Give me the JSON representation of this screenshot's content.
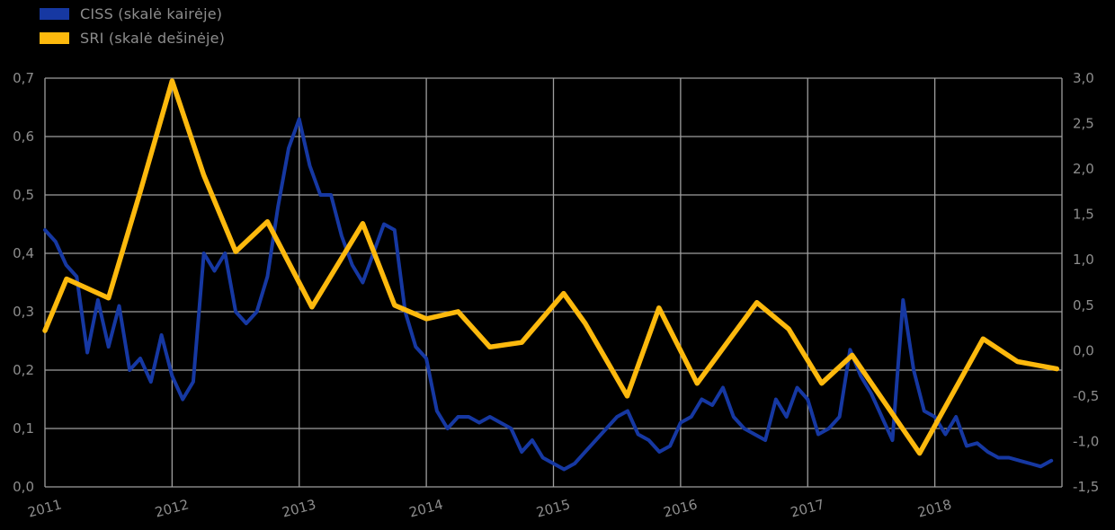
{
  "legend": {
    "items": [
      {
        "label": "CISS (skalė kairėje)",
        "color": "#1638a2"
      },
      {
        "label": "SRI (skalė dešinėje)",
        "color": "#fdb90d"
      }
    ]
  },
  "colors": {
    "background": "#000000",
    "gridline": "#9e9e9e",
    "ciss_line": "#1638a2",
    "sri_line": "#fdb90d",
    "axis_text": "#8d8d8d"
  },
  "left_axis": {
    "tick_labels": [
      "0,7",
      "0,6",
      "0,5",
      "0,4",
      "0,3",
      "0,2",
      "0,1",
      "0,0"
    ],
    "min": 0.0,
    "max": 0.7
  },
  "right_axis": {
    "tick_labels": [
      "3,0",
      "2,5",
      "2,0",
      "1,5",
      "1,0",
      "0,5",
      "0,0",
      "-0,5",
      "-1,0",
      "-1,5"
    ],
    "min": -1.5,
    "max": 3.0
  },
  "x_axis": {
    "labels": [
      "2011",
      "2012",
      "2013",
      "2014",
      "2015",
      "2016",
      "2017",
      "2018"
    ],
    "min": 2011,
    "max": 2019
  },
  "chart_data": {
    "type": "line",
    "title": "",
    "grid": true,
    "legend_position": "top-left",
    "x_range": [
      2011.0,
      2019.0
    ],
    "left_ylim": [
      0.0,
      0.7
    ],
    "right_ylim": [
      -1.5,
      3.0
    ],
    "series": [
      {
        "name": "CISS (skalė kairėje)",
        "axis": "left",
        "color": "#1638a2",
        "frequency": "monthly",
        "x_start": 2011.0,
        "x_step": 0.0833333,
        "values": [
          0.44,
          0.42,
          0.38,
          0.36,
          0.23,
          0.32,
          0.24,
          0.31,
          0.2,
          0.22,
          0.18,
          0.26,
          0.19,
          0.15,
          0.18,
          0.4,
          0.37,
          0.4,
          0.3,
          0.28,
          0.3,
          0.36,
          0.48,
          0.58,
          0.63,
          0.55,
          0.5,
          0.5,
          0.43,
          0.38,
          0.35,
          0.4,
          0.45,
          0.44,
          0.3,
          0.24,
          0.22,
          0.13,
          0.1,
          0.12,
          0.12,
          0.11,
          0.12,
          0.11,
          0.1,
          0.06,
          0.08,
          0.05,
          0.04,
          0.03,
          0.04,
          0.06,
          0.08,
          0.1,
          0.12,
          0.13,
          0.09,
          0.08,
          0.06,
          0.07,
          0.11,
          0.12,
          0.15,
          0.14,
          0.17,
          0.12,
          0.1,
          0.09,
          0.08,
          0.15,
          0.12,
          0.17,
          0.15,
          0.09,
          0.1,
          0.12,
          0.235,
          0.19,
          0.16,
          0.12,
          0.08,
          0.32,
          0.2,
          0.13,
          0.12,
          0.09,
          0.12,
          0.07,
          0.075,
          0.06,
          0.05,
          0.05,
          0.045,
          0.04,
          0.035,
          0.045
        ]
      },
      {
        "name": "SRI (skalė dešinėje)",
        "axis": "right",
        "color": "#fdb90d",
        "frequency": "quarterly-knots",
        "points": [
          [
            2011.0,
            0.22
          ],
          [
            2011.17,
            0.79
          ],
          [
            2011.5,
            0.58
          ],
          [
            2011.75,
            1.75
          ],
          [
            2012.0,
            2.97
          ],
          [
            2012.25,
            1.93
          ],
          [
            2012.5,
            1.09
          ],
          [
            2012.75,
            1.42
          ],
          [
            2013.1,
            0.48
          ],
          [
            2013.5,
            1.4
          ],
          [
            2013.75,
            0.5
          ],
          [
            2014.0,
            0.35
          ],
          [
            2014.25,
            0.43
          ],
          [
            2014.5,
            0.04
          ],
          [
            2014.75,
            0.09
          ],
          [
            2015.08,
            0.63
          ],
          [
            2015.25,
            0.3
          ],
          [
            2015.58,
            -0.5
          ],
          [
            2015.83,
            0.47
          ],
          [
            2016.13,
            -0.36
          ],
          [
            2016.6,
            0.53
          ],
          [
            2016.85,
            0.24
          ],
          [
            2017.11,
            -0.36
          ],
          [
            2017.35,
            -0.05
          ],
          [
            2017.88,
            -1.13
          ],
          [
            2018.38,
            0.13
          ],
          [
            2018.65,
            -0.12
          ],
          [
            2018.96,
            -0.2
          ]
        ]
      }
    ]
  }
}
